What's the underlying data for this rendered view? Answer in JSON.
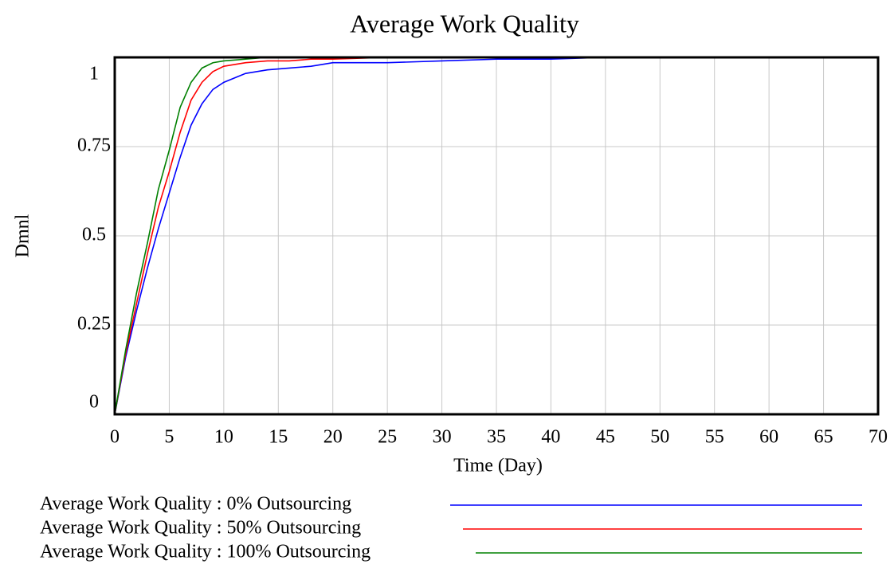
{
  "chart_data": {
    "type": "line",
    "title": "Average Work Quality",
    "x_label": "Time (Day)",
    "y_label": "Dmnl",
    "x": [
      0,
      1,
      2,
      3,
      4,
      5,
      6,
      7,
      8,
      9,
      10,
      12,
      14,
      16,
      18,
      20,
      25,
      30,
      35,
      40,
      45,
      50,
      55,
      60,
      65,
      70
    ],
    "series": [
      {
        "name": "Average Work Quality : 0% Outsourcing",
        "color": "#0000ff",
        "values": [
          0,
          0.16,
          0.29,
          0.41,
          0.52,
          0.62,
          0.72,
          0.81,
          0.87,
          0.91,
          0.93,
          0.955,
          0.965,
          0.97,
          0.975,
          0.985,
          0.985,
          0.99,
          0.995,
          0.995,
          1,
          1,
          1,
          1,
          1,
          1
        ]
      },
      {
        "name": "Average Work Quality : 50% Outsourcing",
        "color": "#ff0000",
        "values": [
          0,
          0.17,
          0.31,
          0.45,
          0.58,
          0.68,
          0.79,
          0.88,
          0.93,
          0.96,
          0.975,
          0.985,
          0.99,
          0.99,
          0.995,
          0.995,
          1,
          1,
          1,
          1,
          1,
          1,
          1,
          1,
          1,
          1
        ]
      },
      {
        "name": "Average Work Quality : 100% Outsourcing",
        "color": "#008000",
        "values": [
          0,
          0.18,
          0.34,
          0.48,
          0.63,
          0.74,
          0.86,
          0.93,
          0.97,
          0.985,
          0.99,
          0.995,
          1,
          1,
          1,
          1,
          1,
          1,
          1,
          1,
          1,
          1,
          1,
          1,
          1,
          1
        ]
      }
    ],
    "xlim": [
      0,
      70
    ],
    "xticks": [
      0,
      5,
      10,
      15,
      20,
      25,
      30,
      35,
      40,
      45,
      50,
      55,
      60,
      65,
      70
    ],
    "ylim": [
      0,
      1
    ],
    "yticks": [
      0,
      0.25,
      0.5,
      0.75,
      1
    ],
    "grid": true
  }
}
